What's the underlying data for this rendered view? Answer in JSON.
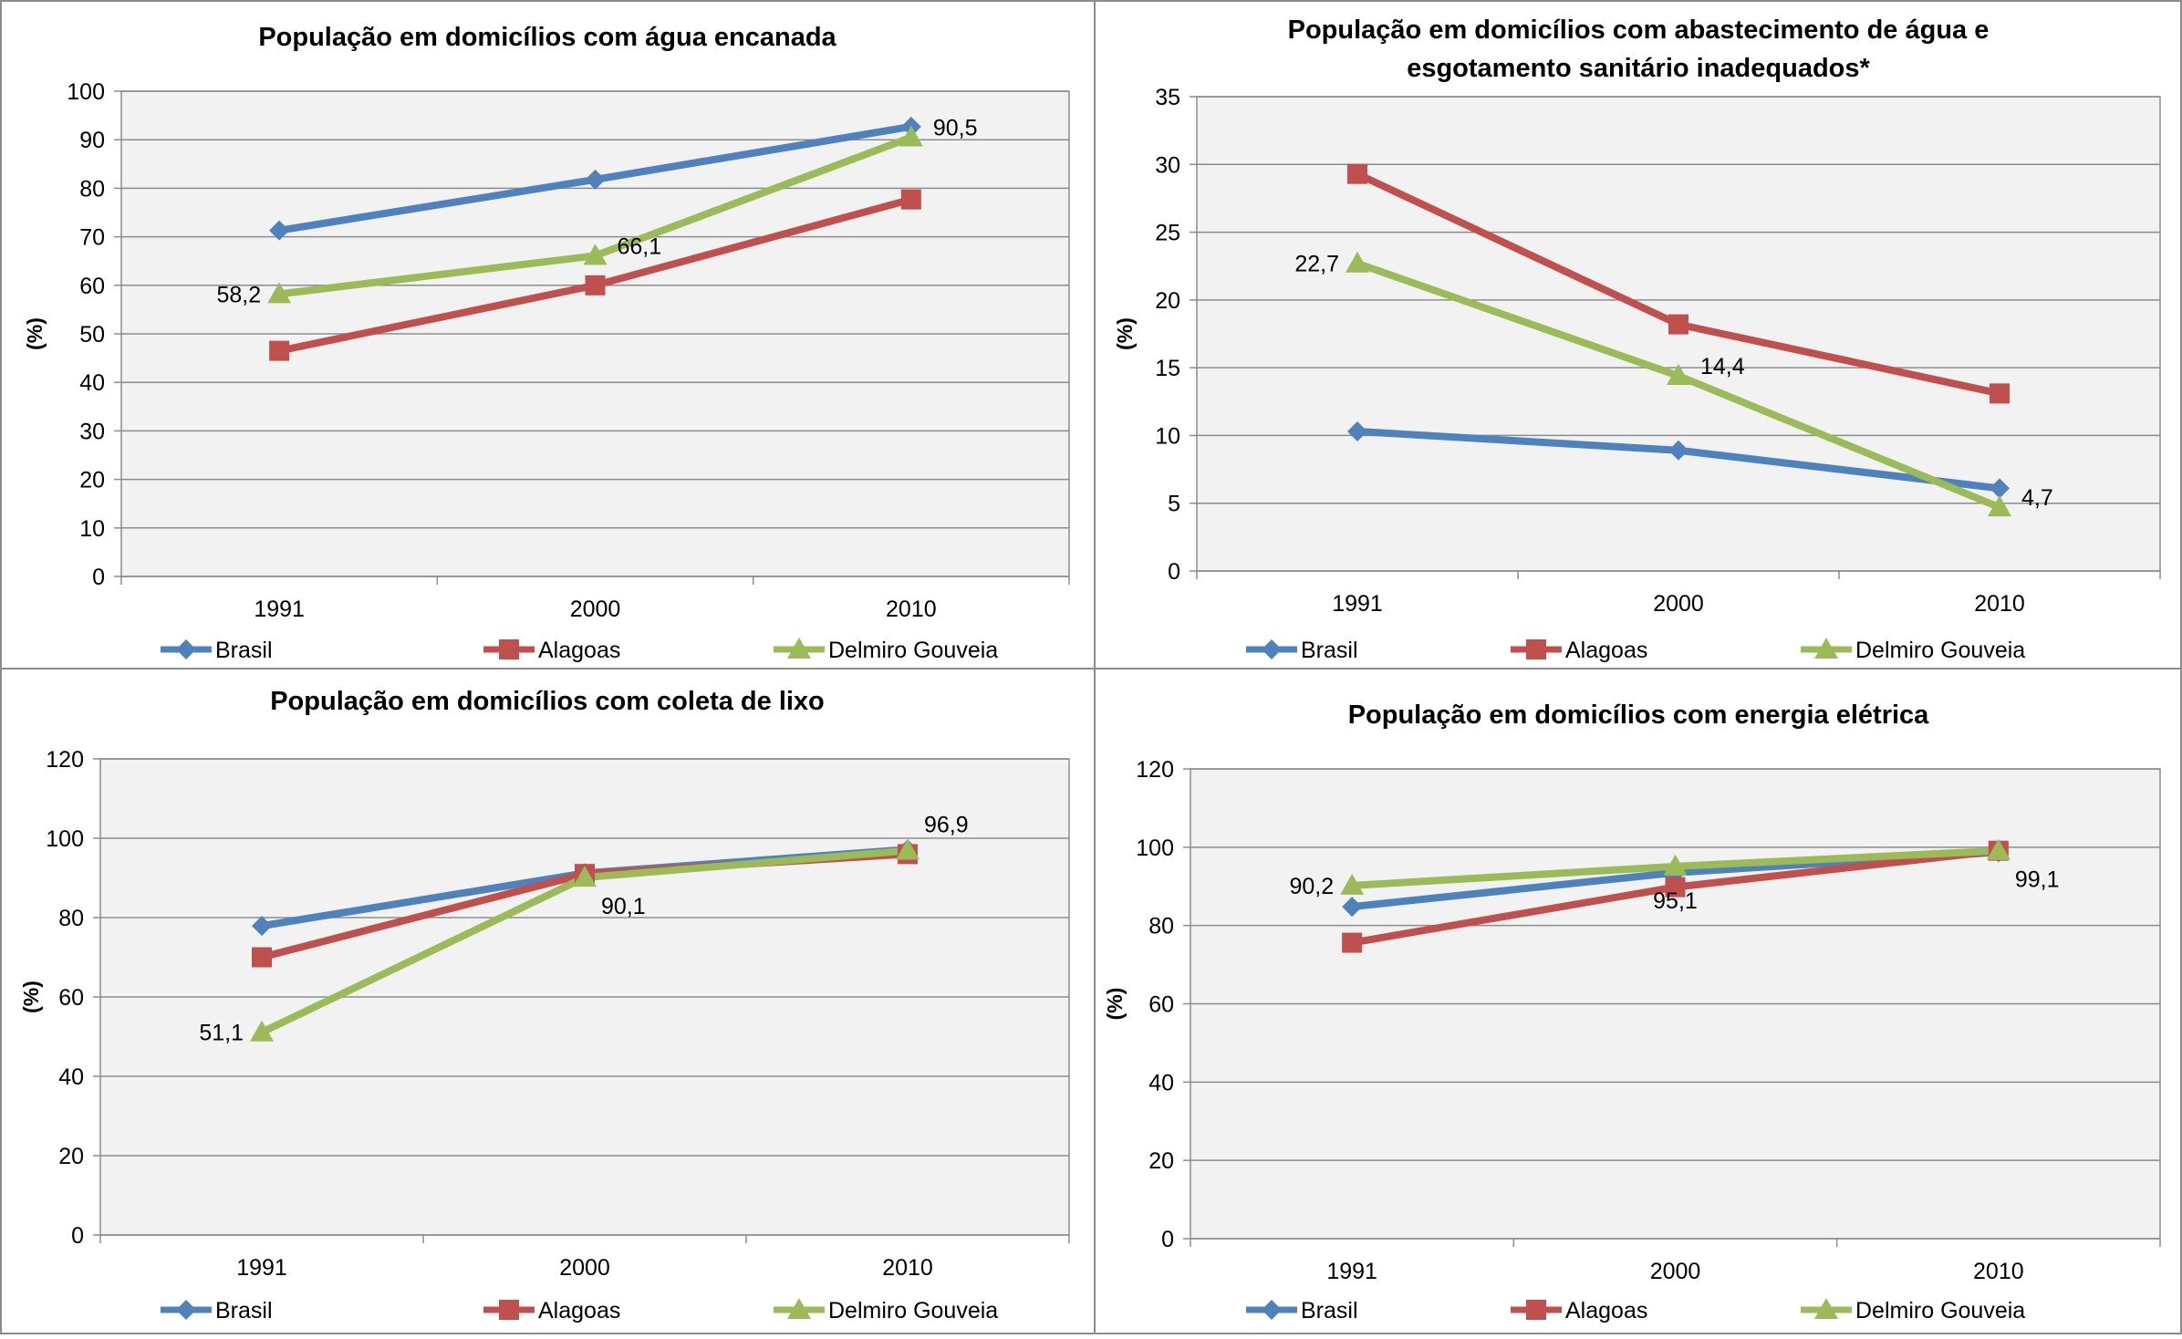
{
  "series_colors": {
    "Brasil": "#4F81BD",
    "Alagoas": "#C0504D",
    "Delmiro Gouveia": "#9BBB59"
  },
  "series_markers": {
    "Brasil": "diamond",
    "Alagoas": "square",
    "Delmiro Gouveia": "triangle"
  },
  "plot_background": "#F2F2F2",
  "chart_data": [
    {
      "type": "line",
      "title": "População em domicílios com água encanada",
      "ylabel": "(%)",
      "xlabel": "",
      "categories": [
        "1991",
        "2000",
        "2010"
      ],
      "ylim": [
        0,
        100
      ],
      "yticks": [
        0,
        10,
        20,
        30,
        40,
        50,
        60,
        70,
        80,
        90,
        100
      ],
      "grid": true,
      "legend_position": "bottom",
      "series": [
        {
          "name": "Brasil",
          "values": [
            71.3,
            81.8,
            92.7
          ]
        },
        {
          "name": "Alagoas",
          "values": [
            46.5,
            60.0,
            77.7
          ]
        },
        {
          "name": "Delmiro Gouveia",
          "values": [
            58.2,
            66.1,
            90.5
          ]
        }
      ],
      "data_labels": [
        {
          "series": "Delmiro Gouveia",
          "index": 0,
          "text": "58,2",
          "side": "left"
        },
        {
          "series": "Delmiro Gouveia",
          "index": 1,
          "text": "66,1",
          "side": "right"
        },
        {
          "series": "Delmiro Gouveia",
          "index": 2,
          "text": "90,5",
          "side": "right"
        }
      ]
    },
    {
      "type": "line",
      "title": "População em domicílios com abastecimento de água e esgotamento sanitário inadequados*",
      "title_lines": [
        "População em domicílios com abastecimento de água e",
        "esgotamento sanitário inadequados*"
      ],
      "ylabel": "(%)",
      "xlabel": "",
      "categories": [
        "1991",
        "2000",
        "2010"
      ],
      "ylim": [
        0,
        35
      ],
      "yticks": [
        0,
        5,
        10,
        15,
        20,
        25,
        30,
        35
      ],
      "grid": true,
      "legend_position": "bottom",
      "series": [
        {
          "name": "Brasil",
          "values": [
            10.3,
            8.9,
            6.1
          ]
        },
        {
          "name": "Alagoas",
          "values": [
            29.3,
            18.2,
            13.1
          ]
        },
        {
          "name": "Delmiro Gouveia",
          "values": [
            22.7,
            14.4,
            4.7
          ]
        }
      ],
      "data_labels": [
        {
          "series": "Delmiro Gouveia",
          "index": 0,
          "text": "22,7",
          "side": "left"
        },
        {
          "series": "Delmiro Gouveia",
          "index": 1,
          "text": "14,4",
          "side": "right"
        },
        {
          "series": "Delmiro Gouveia",
          "index": 2,
          "text": "4,7",
          "side": "right"
        }
      ]
    },
    {
      "type": "line",
      "title": "População em domicílios com coleta de lixo",
      "ylabel": "(%)",
      "xlabel": "",
      "categories": [
        "1991",
        "2000",
        "2010"
      ],
      "ylim": [
        0,
        120
      ],
      "yticks": [
        0,
        20,
        40,
        60,
        80,
        100,
        120
      ],
      "grid": true,
      "legend_position": "bottom",
      "series": [
        {
          "name": "Brasil",
          "values": [
            77.9,
            91.2,
            97.2
          ]
        },
        {
          "name": "Alagoas",
          "values": [
            70.0,
            91.0,
            96.0
          ]
        },
        {
          "name": "Delmiro Gouveia",
          "values": [
            51.1,
            90.1,
            96.9
          ]
        }
      ],
      "data_labels": [
        {
          "series": "Delmiro Gouveia",
          "index": 0,
          "text": "51,1",
          "side": "left"
        },
        {
          "series": "Delmiro Gouveia",
          "index": 1,
          "text": "90,1",
          "side": "below-right"
        },
        {
          "series": "Delmiro Gouveia",
          "index": 2,
          "text": "96,9",
          "side": "above-right"
        }
      ]
    },
    {
      "type": "line",
      "title": "População em domicílios com energia elétrica",
      "ylabel": "(%)",
      "xlabel": "",
      "categories": [
        "1991",
        "2000",
        "2010"
      ],
      "ylim": [
        0,
        120
      ],
      "yticks": [
        0,
        20,
        40,
        60,
        80,
        100,
        120
      ],
      "grid": true,
      "legend_position": "bottom",
      "series": [
        {
          "name": "Brasil",
          "values": [
            84.8,
            93.5,
            98.7
          ]
        },
        {
          "name": "Alagoas",
          "values": [
            75.6,
            89.8,
            99.1
          ]
        },
        {
          "name": "Delmiro Gouveia",
          "values": [
            90.2,
            95.1,
            99.1
          ]
        }
      ],
      "data_labels": [
        {
          "series": "Delmiro Gouveia",
          "index": 0,
          "text": "90,2",
          "side": "left"
        },
        {
          "series": "Delmiro Gouveia",
          "index": 1,
          "text": "95,1",
          "side": "below"
        },
        {
          "series": "Delmiro Gouveia",
          "index": 2,
          "text": "99,1",
          "side": "below-right"
        }
      ]
    }
  ]
}
